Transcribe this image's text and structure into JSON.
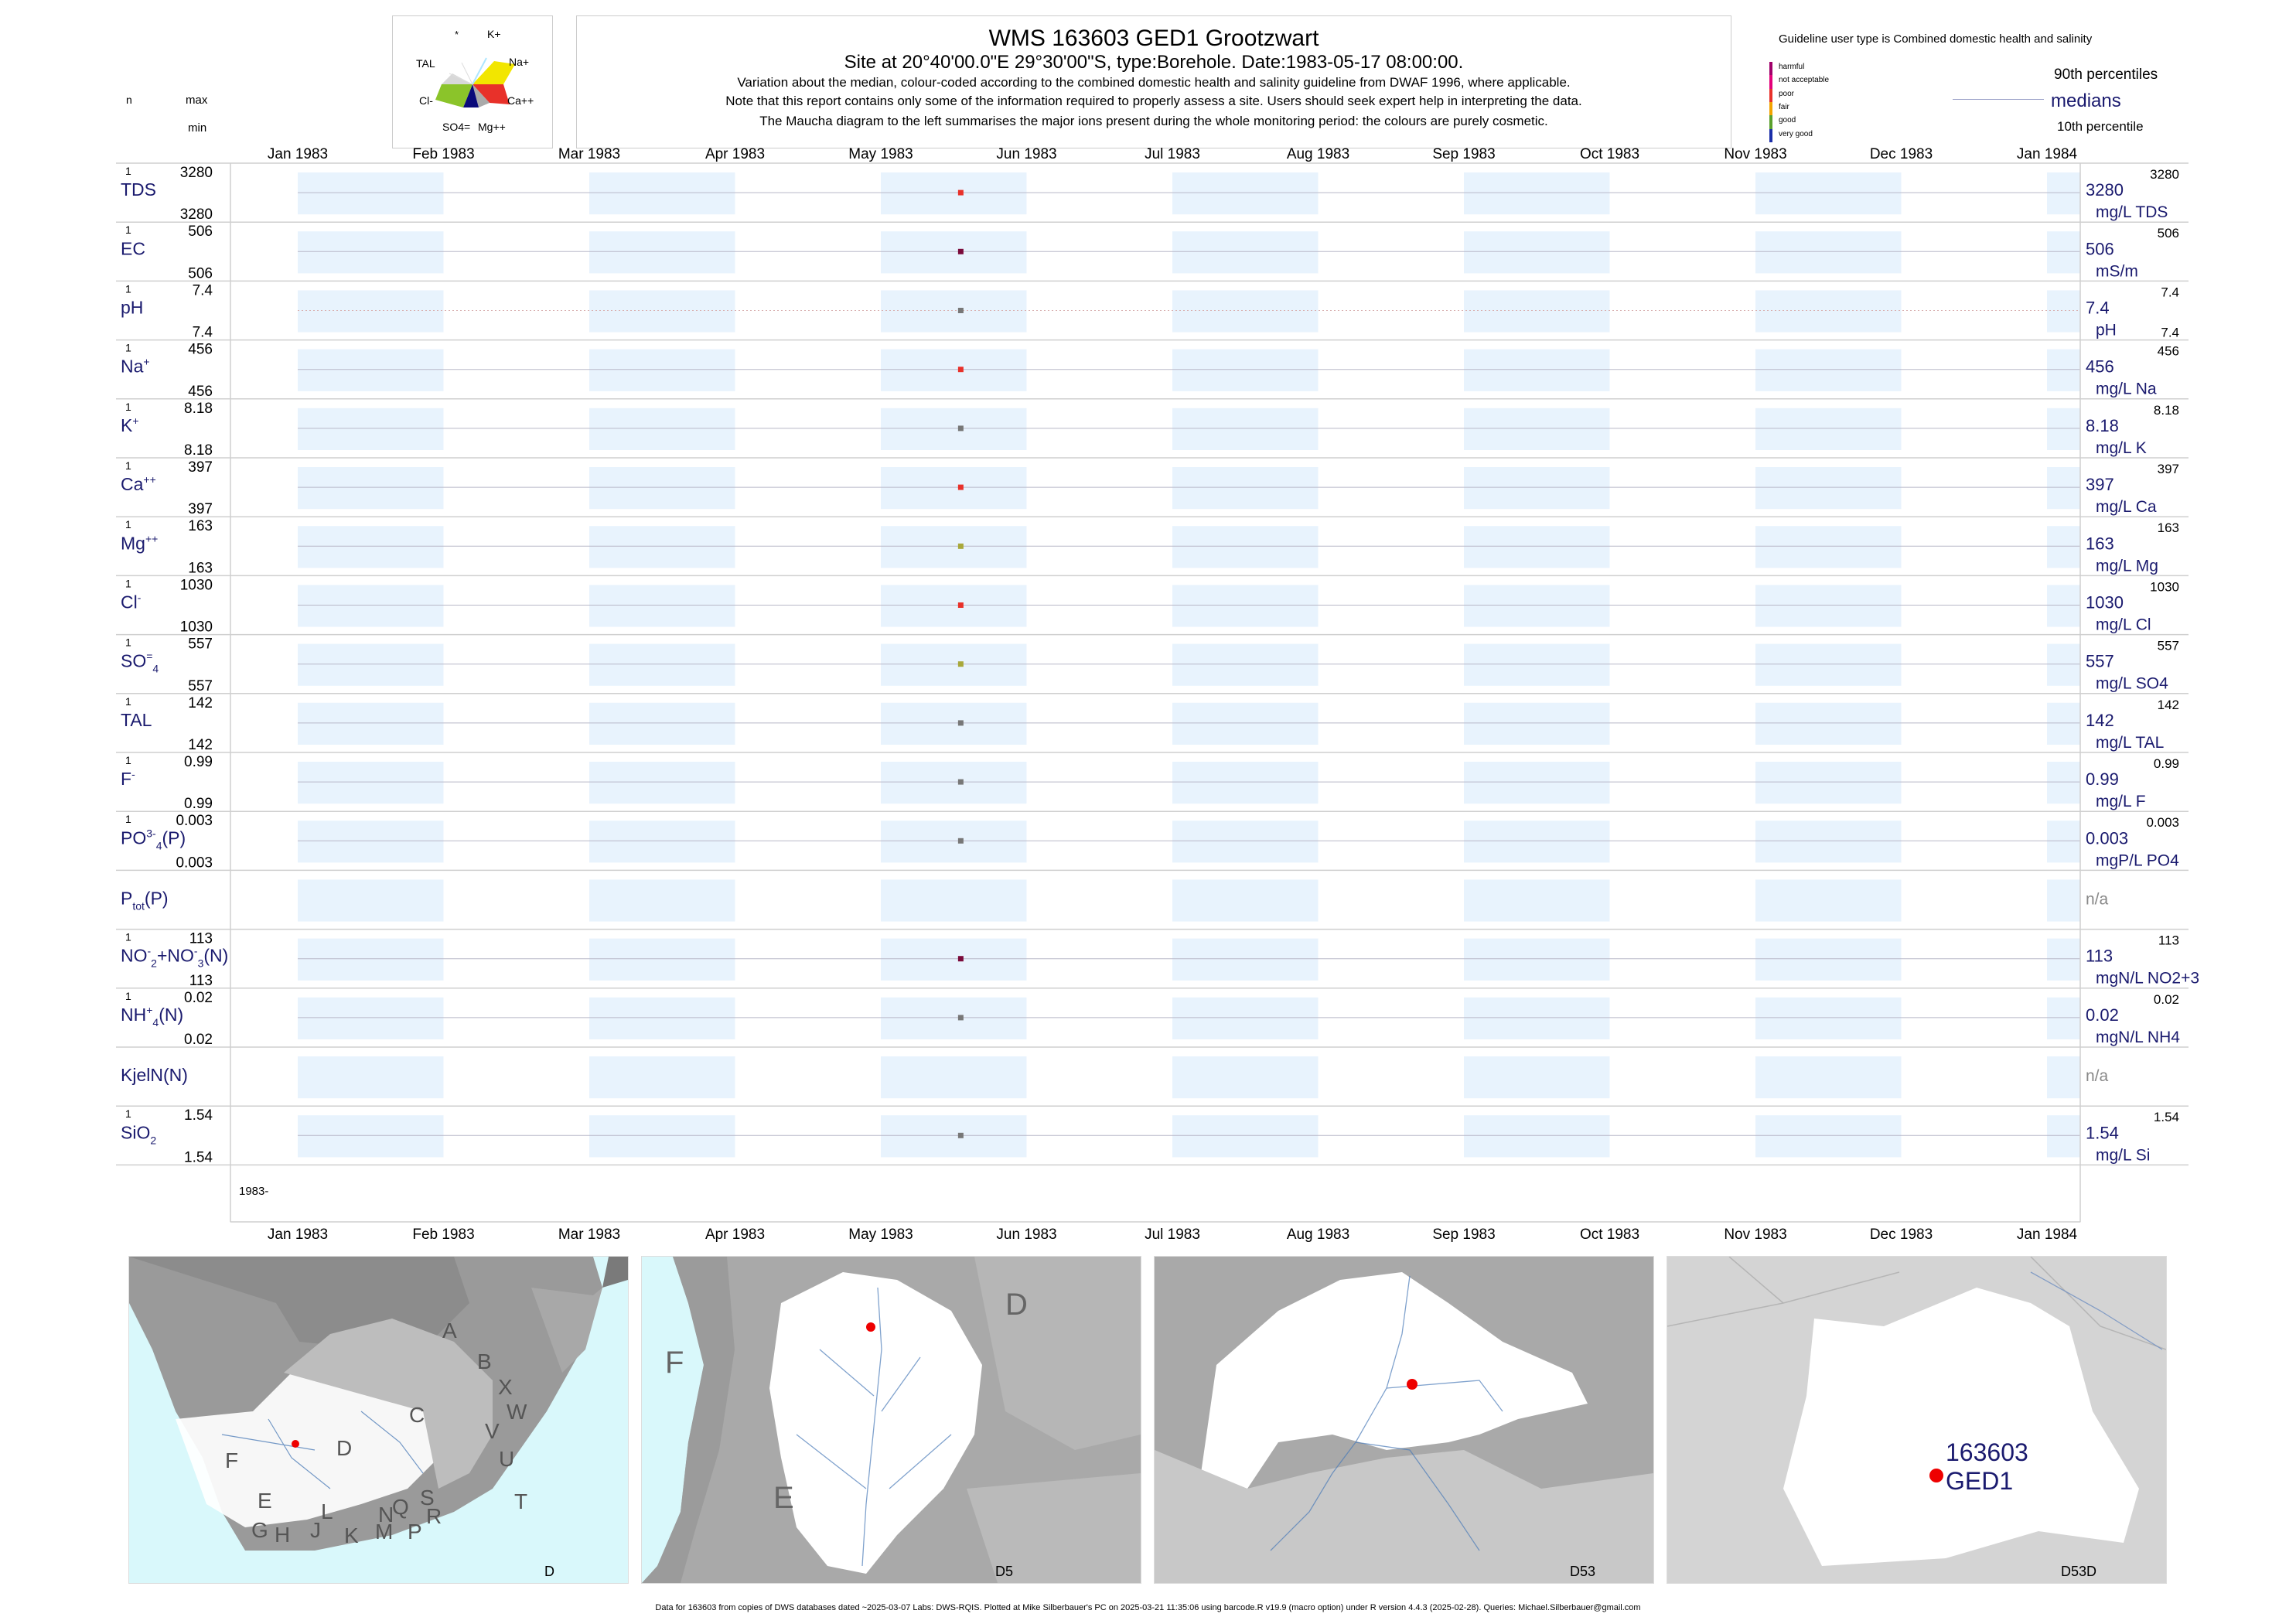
{
  "header": {
    "title": "WMS 163603 GED1 Grootzwart",
    "subtitle": "Site at 20°40'00.0\"E 29°30'00\"S, type:Borehole. Date:1983-05-17 08:00:00.",
    "notes": [
      "Variation about the median,  colour-coded according to the combined domestic health and salinity guideline from DWAF 1996, where applicable.",
      "Note that this report contains only some of the information required to properly assess a site. Users should seek expert help in interpreting the data.",
      "The Maucha diagram to the left summarises the major ions present during the whole monitoring period: the colours are purely cosmetic."
    ],
    "n_label": "n",
    "max_label": "max",
    "min_label": "min"
  },
  "maucha": {
    "labels": [
      "*",
      "K+",
      "TAL",
      "Na+",
      "Cl-",
      "Ca++",
      "SO4=",
      "Mg++"
    ],
    "colors": {
      "na": "#f2e600",
      "ca": "#e8312a",
      "mg": "#aaaaaa",
      "so4": "#0a0a7a",
      "cl": "#8bc42a",
      "tal": "#d8d8d8",
      "k": "#aee6ff"
    }
  },
  "legend": {
    "guideline_title": "Guideline user type is Combined domestic health and salinity",
    "categories": [
      {
        "label": "harmful",
        "color": "#a0006a"
      },
      {
        "label": "not acceptable",
        "color": "#e3007a"
      },
      {
        "label": "poor",
        "color": "#e8312a"
      },
      {
        "label": "fair",
        "color": "#f2a300"
      },
      {
        "label": "good",
        "color": "#5aa02c"
      },
      {
        "label": "very good",
        "color": "#1a2ea8"
      }
    ],
    "p90": "90th percentiles",
    "medians": "medians",
    "p10": "10th percentile"
  },
  "chart_data": {
    "type": "scatter",
    "x_axis": {
      "range": [
        "1983-01-01",
        "1984-01-01"
      ],
      "tick_labels": [
        "Jan 1983",
        "Feb 1983",
        "Mar 1983",
        "Apr 1983",
        "May 1983",
        "Jun 1983",
        "Jul 1983",
        "Aug 1983",
        "Sep 1983",
        "Oct 1983",
        "Nov 1983",
        "Dec 1983",
        "Jan 1984"
      ],
      "year_label": "1983-"
    },
    "sample_date": "1983-05-17",
    "series": [
      {
        "name": "TDS",
        "sup": "",
        "sub": "",
        "n": "1",
        "max": "3280",
        "min": "3280",
        "median": "3280",
        "right_top": "3280",
        "unit": "mg/L TDS",
        "value": 3280,
        "color": "#e8312a"
      },
      {
        "name": "EC",
        "sup": "",
        "sub": "",
        "n": "1",
        "max": "506",
        "min": "506",
        "median": "506",
        "right_top": "506",
        "unit": "mS/m",
        "value": 506,
        "color": "#7a0a3a"
      },
      {
        "name": "pH",
        "sup": "",
        "sub": "",
        "n": "1",
        "max": "7.4",
        "min": "7.4",
        "median": "7.4",
        "right_top": "7.4",
        "right_bottom": "7.4",
        "unit": "pH",
        "value": 7.4,
        "color": "#777777"
      },
      {
        "name": "Na",
        "sup": "+",
        "sub": "",
        "n": "1",
        "max": "456",
        "min": "456",
        "median": "456",
        "right_top": "456",
        "unit": "mg/L Na",
        "value": 456,
        "color": "#e8312a"
      },
      {
        "name": "K",
        "sup": "+",
        "sub": "",
        "n": "1",
        "max": "8.18",
        "min": "8.18",
        "median": "8.18",
        "right_top": "8.18",
        "unit": "mg/L K",
        "value": 8.18,
        "color": "#777777"
      },
      {
        "name": "Ca",
        "sup": "++",
        "sub": "",
        "n": "1",
        "max": "397",
        "min": "397",
        "median": "397",
        "right_top": "397",
        "unit": "mg/L Ca",
        "value": 397,
        "color": "#e8312a"
      },
      {
        "name": "Mg",
        "sup": "++",
        "sub": "",
        "n": "1",
        "max": "163",
        "min": "163",
        "median": "163",
        "right_top": "163",
        "unit": "mg/L Mg",
        "value": 163,
        "color": "#a8a83a"
      },
      {
        "name": "Cl",
        "sup": "-",
        "sub": "",
        "n": "1",
        "max": "1030",
        "min": "1030",
        "median": "1030",
        "right_top": "1030",
        "unit": "mg/L Cl",
        "value": 1030,
        "color": "#e8312a"
      },
      {
        "name": "SO",
        "sup": "=",
        "sub": "4",
        "n": "1",
        "max": "557",
        "min": "557",
        "median": "557",
        "right_top": "557",
        "unit": "mg/L SO4",
        "value": 557,
        "color": "#a8a83a"
      },
      {
        "name": "TAL",
        "sup": "",
        "sub": "",
        "n": "1",
        "max": "142",
        "min": "142",
        "median": "142",
        "right_top": "142",
        "unit": "mg/L TAL",
        "value": 142,
        "color": "#777777"
      },
      {
        "name": "F",
        "sup": "-",
        "sub": "",
        "n": "1",
        "max": "0.99",
        "min": "0.99",
        "median": "0.99",
        "right_top": "0.99",
        "unit": "mg/L F",
        "value": 0.99,
        "color": "#777777"
      },
      {
        "name": "PO",
        "sup": "3-",
        "sub": "4",
        "suffix": "(P)",
        "n": "1",
        "max": "0.003",
        "min": "0.003",
        "median": "0.003",
        "right_top": "0.003",
        "unit": "mgP/L PO4",
        "value": 0.003,
        "color": "#777777"
      },
      {
        "name": "P",
        "sup": "",
        "sub": "tot",
        "suffix": "(P)",
        "n": "",
        "max": "",
        "min": "",
        "median": "n/a",
        "right_top": "",
        "unit": "",
        "value": null,
        "color": ""
      },
      {
        "name": "NO",
        "sup": "-",
        "sub": "2",
        "suffix": "+NO",
        "suffix_sup": "-",
        "suffix_sub": "3",
        "suffix2": "(N)",
        "n": "1",
        "max": "113",
        "min": "113",
        "median": "113",
        "right_top": "113",
        "unit": "mgN/L NO2+3",
        "value": 113,
        "color": "#7a0a3a"
      },
      {
        "name": "NH",
        "sup": "+",
        "sub": "4",
        "suffix": "(N)",
        "n": "1",
        "max": "0.02",
        "min": "0.02",
        "median": "0.02",
        "right_top": "0.02",
        "unit": "mgN/L NH4",
        "value": 0.02,
        "color": "#777777"
      },
      {
        "name": "KjelN(N)",
        "sup": "",
        "sub": "",
        "n": "",
        "max": "",
        "min": "",
        "median": "n/a",
        "right_top": "",
        "unit": "",
        "value": null,
        "color": ""
      },
      {
        "name": "SiO",
        "sup": "",
        "sub": "2",
        "n": "1",
        "max": "1.54",
        "min": "1.54",
        "median": "1.54",
        "right_top": "1.54",
        "unit": "mg/L Si",
        "value": 1.54,
        "color": "#777777"
      }
    ]
  },
  "maps": [
    {
      "corner_label": "D",
      "region_letters": [
        "A",
        "B",
        "X",
        "W",
        "C",
        "V",
        "U",
        "T",
        "D",
        "F",
        "E",
        "G",
        "H",
        "J",
        "K",
        "L",
        "M",
        "N",
        "P",
        "Q",
        "R",
        "S"
      ]
    },
    {
      "corner_label": "D5",
      "region_letters": [
        "F",
        "D",
        "E"
      ]
    },
    {
      "corner_label": "D53",
      "region_letters": []
    },
    {
      "corner_label": "D53D",
      "site_id": "163603",
      "site_name": "GED1"
    }
  ],
  "footer": "Data for 163603 from copies of DWS databases dated ~2025-03-07 Labs: DWS-RQIS. Plotted at Mike Silberbauer's PC on 2025-03-21 11:35:06 using barcode.R v19.9 (macro option) under R version 4.4.3 (2025-02-28). Queries: Michael.Silberbauer@gmail.com"
}
